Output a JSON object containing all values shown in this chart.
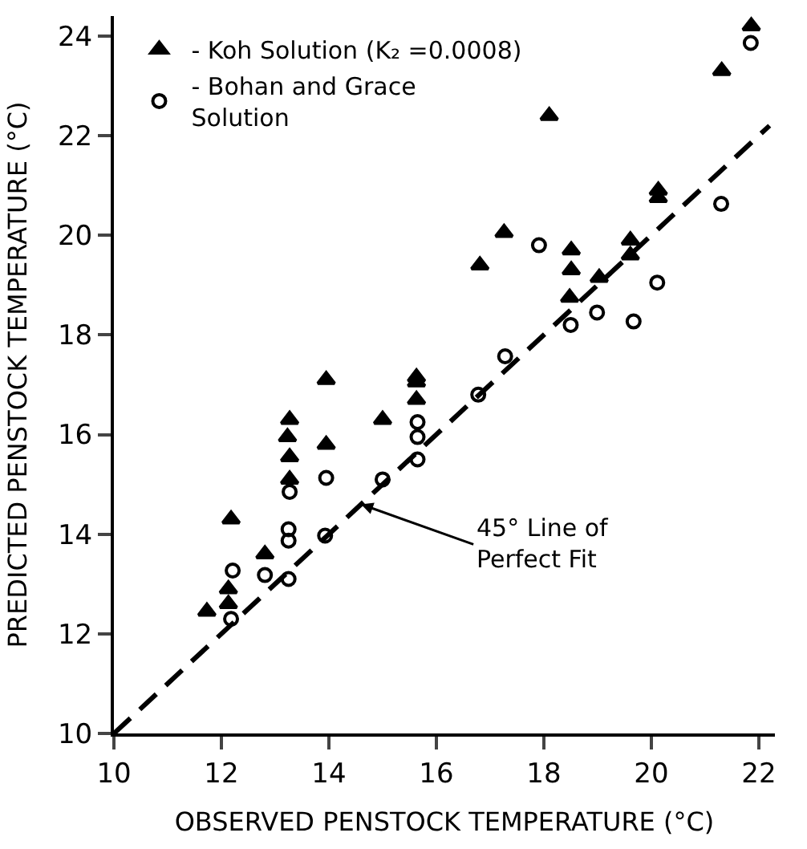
{
  "chart_data": {
    "type": "scatter",
    "xlabel": "OBSERVED PENSTOCK TEMPERATURE (°C)",
    "ylabel": "PREDICTED PENSTOCK TEMPERATURE (°C)",
    "xlim": [
      10,
      22.3
    ],
    "ylim": [
      10,
      24.4
    ],
    "xticks": [
      10,
      12,
      14,
      16,
      18,
      20,
      22
    ],
    "yticks": [
      10,
      12,
      14,
      16,
      18,
      20,
      22,
      24
    ],
    "legend": "top left",
    "series": [
      {
        "name": "- Koh Solution (K₂ =0.0008)",
        "color": "#000000",
        "marker": "triangle",
        "x": [
          13.95,
          15.63,
          15.63,
          15.63,
          15.0,
          13.27,
          13.23,
          13.27,
          13.27,
          13.95,
          12.18,
          12.81,
          12.13,
          12.13,
          11.73,
          17.26,
          16.81,
          18.51,
          18.51,
          18.48,
          19.03,
          19.61,
          19.61,
          21.86,
          21.31,
          20.13,
          20.13,
          18.1
        ],
        "values": [
          17.1,
          17.15,
          17.05,
          16.7,
          16.3,
          16.3,
          15.95,
          15.55,
          15.1,
          15.8,
          14.3,
          13.6,
          12.9,
          12.6,
          12.45,
          20.05,
          19.4,
          19.7,
          19.3,
          18.75,
          19.15,
          19.9,
          19.6,
          24.2,
          23.3,
          20.9,
          20.75,
          22.4
        ]
      },
      {
        "name": "- Bohan and Grace\nSolution",
        "color": "#000000",
        "marker": "circle",
        "x": [
          13.27,
          13.25,
          13.25,
          13.95,
          13.93,
          15.0,
          15.65,
          15.65,
          15.65,
          12.21,
          12.81,
          13.25,
          12.18,
          17.91,
          20.11,
          18.5,
          18.99,
          19.67,
          17.28,
          16.78,
          21.85,
          21.3
        ],
        "values": [
          14.85,
          14.1,
          13.87,
          15.13,
          13.97,
          15.1,
          16.25,
          15.95,
          15.5,
          13.27,
          13.18,
          13.1,
          12.3,
          19.8,
          19.05,
          18.2,
          18.45,
          18.27,
          17.57,
          16.8,
          23.86,
          20.63
        ]
      },
      {
        "type": "line",
        "color": "#000000",
        "line_style": "dashed",
        "marker": "none",
        "x": [
          10,
          22.2
        ],
        "values": [
          10,
          22.2
        ]
      }
    ],
    "annotations": [
      {
        "text": "45° Line of\nPerfect Fit",
        "x": 14.6,
        "y": 14.6
      }
    ]
  }
}
